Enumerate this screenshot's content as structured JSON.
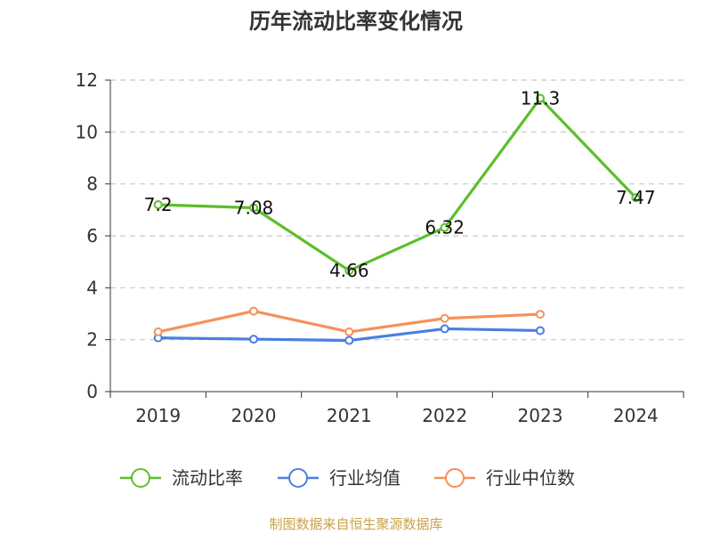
{
  "title": "历年流动比率变化情况",
  "source": "制图数据来自恒生聚源数据库",
  "colors": {
    "current_ratio": "#5cbf2a",
    "industry_avg": "#4a7fe0",
    "industry_median": "#f5915a",
    "grid": "#c8c8c8",
    "axis": "#333333"
  },
  "chart_data": {
    "type": "line",
    "title": "历年流动比率变化情况",
    "xlabel": "",
    "ylabel": "",
    "categories": [
      "2019",
      "2020",
      "2021",
      "2022",
      "2023",
      "2024"
    ],
    "ylim": [
      0,
      12
    ],
    "yticks": [
      0,
      2,
      4,
      6,
      8,
      10,
      12
    ],
    "grid": true,
    "legend_position": "bottom",
    "series": [
      {
        "name": "流动比率",
        "values": [
          7.2,
          7.08,
          4.66,
          6.32,
          11.3,
          7.47
        ],
        "labels": [
          "7.2",
          "7.08",
          "4.66",
          "6.32",
          "11.3",
          "7.47"
        ]
      },
      {
        "name": "行业均值",
        "values": [
          2.07,
          2.02,
          1.97,
          2.42,
          2.35,
          null
        ]
      },
      {
        "name": "行业中位数",
        "values": [
          2.3,
          3.1,
          2.3,
          2.82,
          2.98,
          null
        ]
      }
    ]
  }
}
